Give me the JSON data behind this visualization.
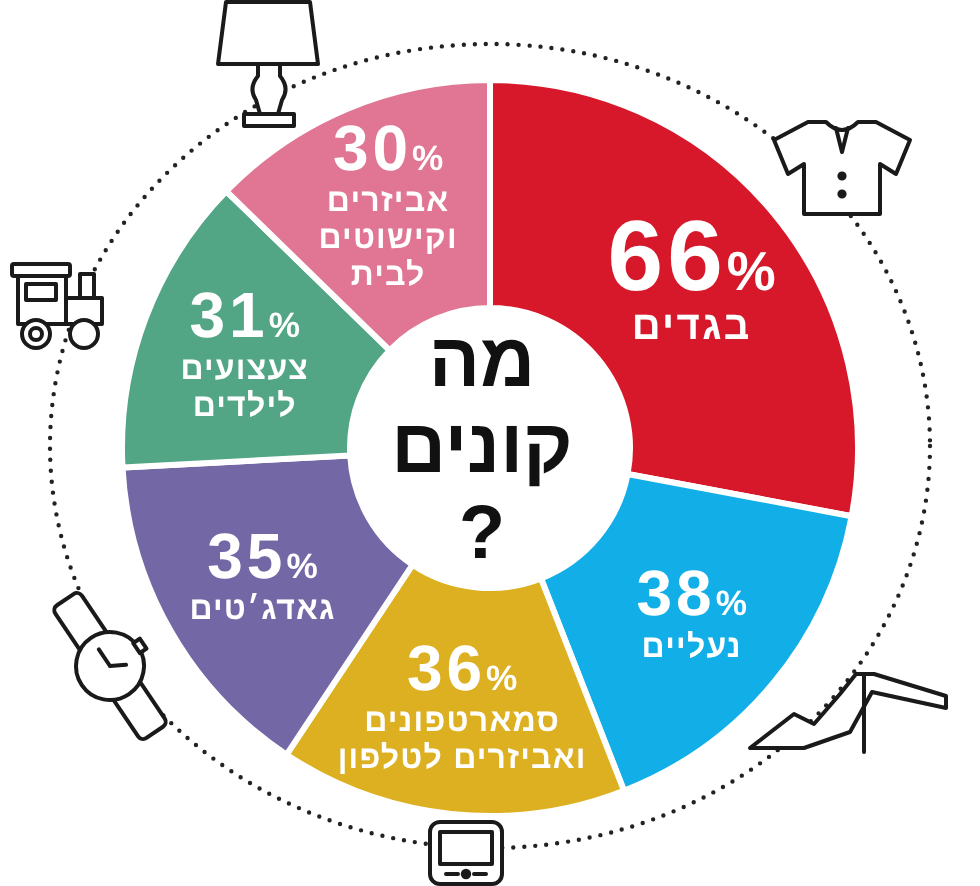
{
  "chart_data": {
    "type": "donut",
    "title": "מה קונים?",
    "categories": [
      "בגדים",
      "נעליים",
      "סמארטפונים ואביזרים לטלפון",
      "גאדג׳טים",
      "צעצועים לילדים",
      "אביזרים וקישוטים לבית"
    ],
    "values": [
      66,
      38,
      36,
      35,
      31,
      30
    ],
    "colors": [
      "#d7182a",
      "#12aee8",
      "#dcb021",
      "#7467a5",
      "#52a585",
      "#e07693"
    ],
    "value_labels": [
      "66%",
      "38%",
      "36%",
      "35%",
      "31%",
      "30%"
    ]
  }
}
